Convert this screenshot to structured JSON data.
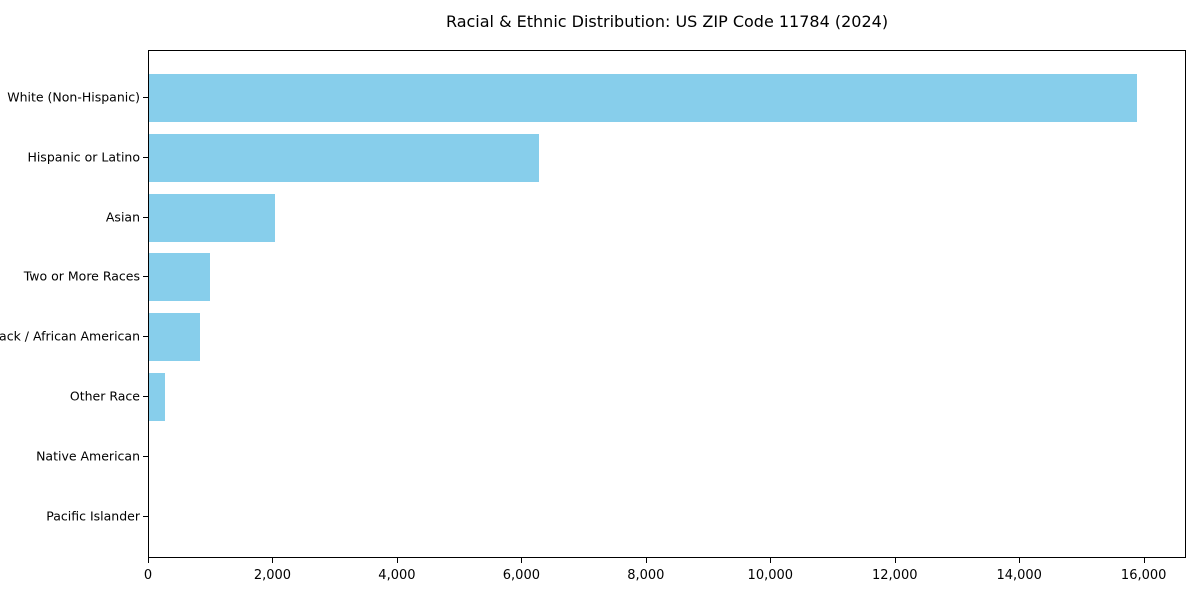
{
  "chart_data": {
    "type": "bar",
    "orientation": "horizontal",
    "title": "Racial & Ethnic Distribution: US ZIP Code 11784 (2024)",
    "categories": [
      "White (Non-Hispanic)",
      "Hispanic or Latino",
      "Asian",
      "Two or More Races",
      "Black / African American",
      "Other Race",
      "Native American",
      "Pacific Islander"
    ],
    "values": [
      15880,
      6260,
      2030,
      975,
      815,
      250,
      0,
      0
    ],
    "xlabel": "",
    "ylabel": "",
    "xlim": [
      0,
      16680
    ],
    "xticks": [
      0,
      2000,
      4000,
      6000,
      8000,
      10000,
      12000,
      14000,
      16000
    ],
    "xtick_labels": [
      "0",
      "2,000",
      "4,000",
      "6,000",
      "8,000",
      "10,000",
      "12,000",
      "14,000",
      "16,000"
    ],
    "bar_color": "#87CEEB",
    "axis_color": "#000000",
    "text_color": "#000000",
    "background": "#FFFFFF",
    "grid": false,
    "legend": null
  }
}
